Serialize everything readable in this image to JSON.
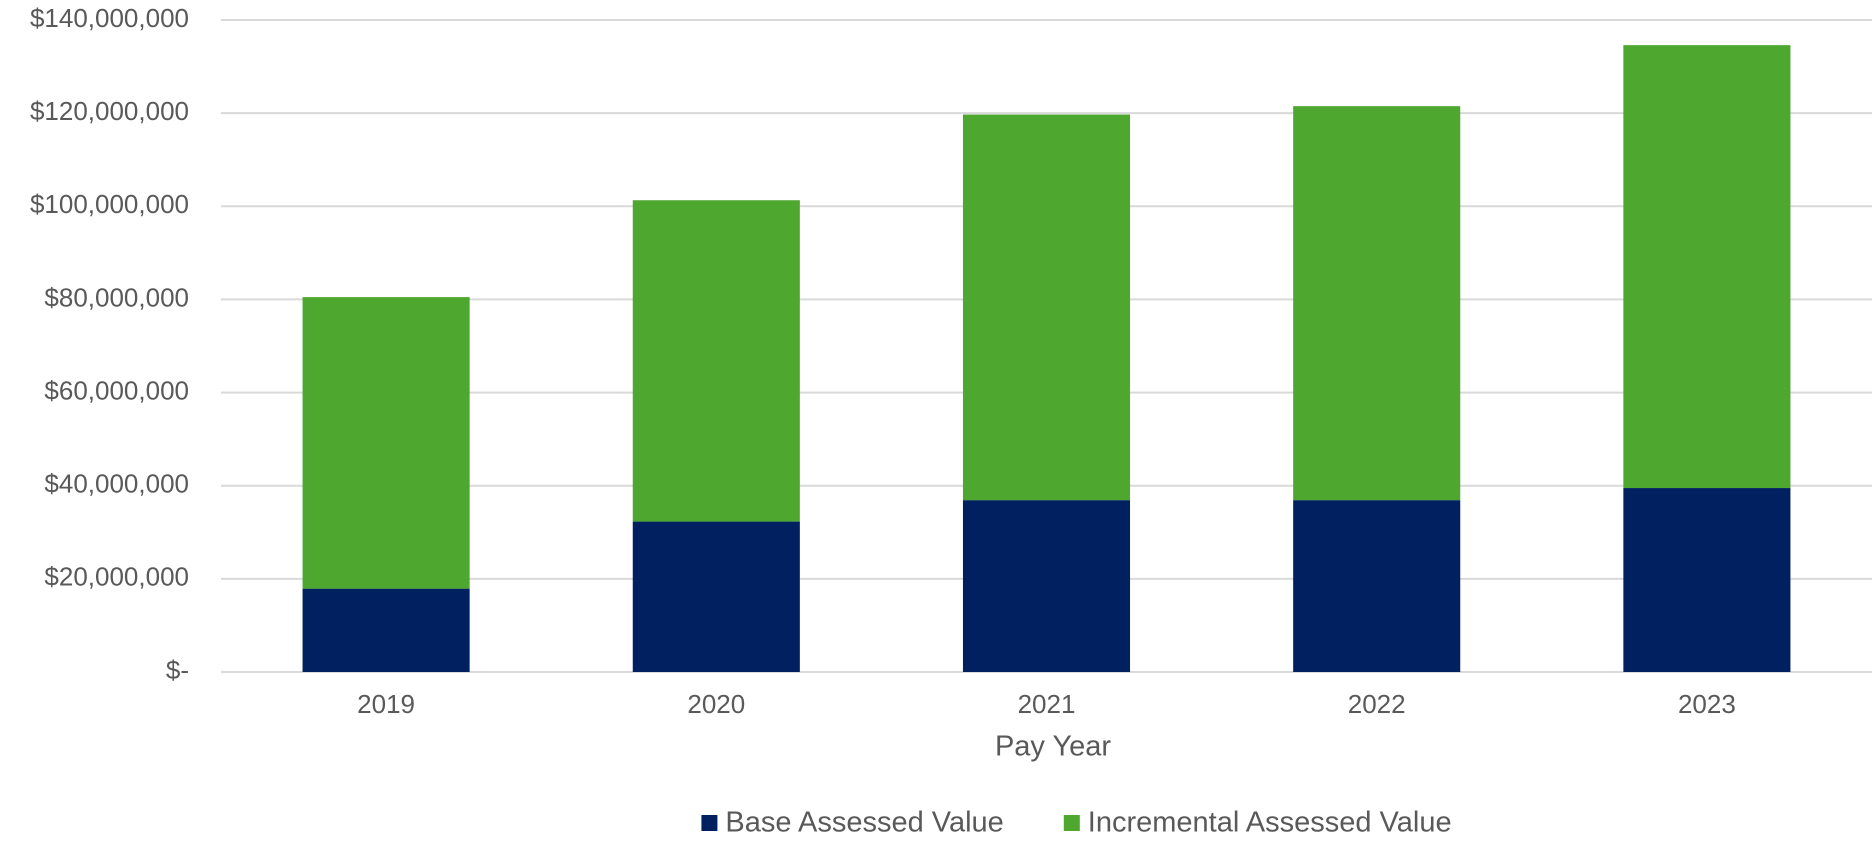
{
  "chart_data": {
    "type": "stacked_bar",
    "x_label": "Pay Year",
    "categories": [
      "2019",
      "2020",
      "2021",
      "2022",
      "2023"
    ],
    "series": [
      {
        "name": "Base Assessed Value",
        "color": "#002060",
        "values": [
          17900000,
          32300000,
          36900000,
          36900000,
          39500000
        ]
      },
      {
        "name": "Incremental Assessed Value",
        "color": "#4ea72e",
        "values": [
          62600000,
          69000000,
          82800000,
          84600000,
          95100000
        ]
      }
    ],
    "ylim": [
      0,
      140000000
    ],
    "yticks": [
      {
        "value": 0,
        "label": "$-"
      },
      {
        "value": 20000000,
        "label": "$20,000,000"
      },
      {
        "value": 40000000,
        "label": "$40,000,000"
      },
      {
        "value": 60000000,
        "label": "$60,000,000"
      },
      {
        "value": 80000000,
        "label": "$80,000,000"
      },
      {
        "value": 100000000,
        "label": "$100,000,000"
      },
      {
        "value": 120000000,
        "label": "$120,000,000"
      },
      {
        "value": 140000000,
        "label": "$140,000,000"
      }
    ],
    "grid": true,
    "legend": "bottom"
  }
}
